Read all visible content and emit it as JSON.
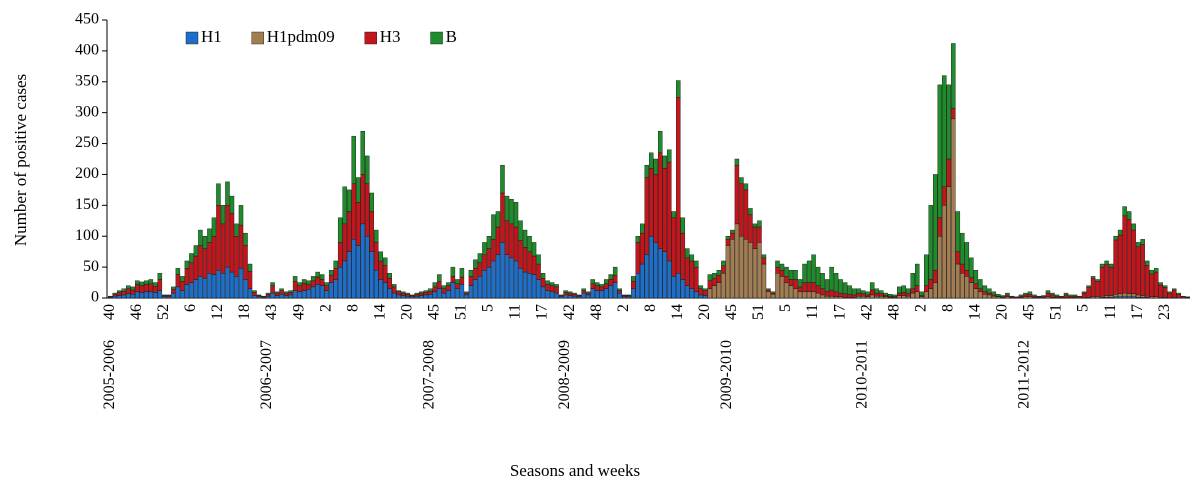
{
  "chart_data": {
    "type": "bar",
    "stacked": true,
    "ylabel": "Number of positive cases",
    "xlabel": "Seasons and weeks",
    "ylim": [
      0,
      450
    ],
    "yticks": [
      0,
      50,
      100,
      150,
      200,
      250,
      300,
      350,
      400,
      450
    ],
    "grid": false,
    "legend": "top-left",
    "seasons": [
      {
        "name": "2005-2006",
        "weeks": [
          "40",
          null,
          null,
          null,
          null,
          null,
          "46",
          null,
          null,
          null,
          null,
          null,
          "52",
          null,
          null,
          null,
          null,
          null,
          "6",
          null,
          null,
          null,
          null,
          null,
          "12",
          null,
          null,
          null,
          null,
          null,
          "18",
          null,
          null
        ]
      },
      {
        "name": "2006-2007",
        "weeks": [
          null,
          null,
          null,
          "43",
          null,
          null,
          null,
          null,
          null,
          "49",
          null,
          null,
          null,
          null,
          null,
          "2",
          null,
          null,
          null,
          null,
          null,
          "8",
          null,
          null,
          null,
          null,
          null,
          "14",
          null,
          null,
          null,
          null,
          null,
          "20"
        ]
      },
      {
        "name": "2007-2008",
        "weeks": [
          null,
          null,
          null,
          null,
          null,
          "45",
          null,
          null,
          null,
          null,
          null,
          "51",
          null,
          null,
          null,
          null,
          null,
          "5",
          null,
          null,
          null,
          null,
          null,
          "11",
          null,
          null,
          null,
          null,
          null,
          "17",
          null,
          null,
          null
        ]
      },
      {
        "name": "2008-2009",
        "weeks": [
          null,
          null,
          "42",
          null,
          null,
          null,
          null,
          null,
          "48",
          null,
          null,
          null,
          null,
          null,
          "2",
          null,
          null,
          null,
          null,
          null,
          "8",
          null,
          null,
          null,
          null,
          null,
          "14",
          null,
          null,
          null,
          null,
          null,
          "20"
        ]
      },
      {
        "name": "2009-2010",
        "weeks": [
          null,
          null,
          null,
          null,
          null,
          "45",
          null,
          null,
          null,
          null,
          null,
          "51",
          null,
          null,
          null,
          null,
          null,
          "5",
          null,
          null,
          null,
          null,
          null,
          "11",
          null,
          null,
          null,
          null,
          null,
          "17",
          null,
          null,
          null
        ]
      },
      {
        "name": "2010-2011",
        "weeks": [
          null,
          null,
          "42",
          null,
          null,
          null,
          null,
          null,
          "48",
          null,
          null,
          null,
          null,
          null,
          "2",
          null,
          null,
          null,
          null,
          null,
          "8",
          null,
          null,
          null,
          null,
          null,
          "14",
          null,
          null,
          null,
          null,
          null,
          "20"
        ]
      },
      {
        "name": "2011-2012",
        "weeks": [
          null,
          null,
          null,
          null,
          null,
          "45",
          null,
          null,
          null,
          null,
          null,
          "51",
          null,
          null,
          null,
          null,
          null,
          "5",
          null,
          null,
          null,
          null,
          null,
          "11",
          null,
          null,
          null,
          null,
          null,
          "17",
          null,
          null,
          null,
          null,
          null,
          "23",
          null,
          null,
          null,
          null,
          null
        ]
      }
    ],
    "series": [
      {
        "name": "H1",
        "color": "#1f6fc8",
        "values": [
          1,
          3,
          4,
          5,
          7,
          6,
          10,
          9,
          10,
          10,
          9,
          12,
          2,
          2,
          8,
          18,
          12,
          22,
          25,
          30,
          35,
          32,
          40,
          38,
          45,
          40,
          50,
          42,
          35,
          48,
          30,
          15,
          4,
          2,
          1,
          3,
          8,
          4,
          6,
          4,
          5,
          12,
          10,
          12,
          14,
          18,
          22,
          20,
          12,
          25,
          30,
          50,
          60,
          75,
          95,
          85,
          120,
          100,
          75,
          45,
          30,
          25,
          15,
          8,
          5,
          4,
          3,
          2,
          3,
          4,
          5,
          6,
          10,
          15,
          8,
          12,
          25,
          15,
          22,
          5,
          20,
          30,
          35,
          45,
          50,
          60,
          70,
          90,
          70,
          65,
          60,
          48,
          42,
          40,
          38,
          30,
          18,
          12,
          10,
          8,
          2,
          5,
          4,
          3,
          2,
          8,
          5,
          15,
          12,
          12,
          15,
          20,
          25,
          8,
          2,
          2,
          15,
          40,
          55,
          70,
          100,
          90,
          80,
          75,
          60,
          35,
          40,
          30,
          20,
          15,
          10,
          5,
          4,
          0,
          0,
          0,
          0,
          0,
          0,
          0,
          0,
          0,
          0,
          0,
          0,
          0,
          0,
          0,
          0,
          0,
          0,
          0,
          0,
          0,
          0,
          0,
          0,
          0,
          0,
          0,
          0,
          0,
          0,
          0,
          0,
          0,
          0,
          0,
          0,
          0,
          0,
          0,
          0,
          0,
          0,
          0,
          0,
          0,
          0,
          0,
          0,
          0,
          0,
          0,
          0,
          0,
          0,
          0,
          0,
          0,
          0,
          0,
          0,
          0,
          0,
          0,
          0,
          0,
          0,
          0,
          0,
          0,
          0,
          0,
          0,
          0,
          0,
          0,
          0,
          0,
          0,
          0,
          0,
          0,
          0,
          0,
          0,
          0,
          0,
          0,
          1,
          1,
          1,
          2,
          2,
          2,
          2,
          2,
          1,
          1,
          1,
          0,
          0,
          0,
          0,
          0,
          0,
          0,
          0,
          0
        ]
      },
      {
        "name": "H1pdm09",
        "color": "#a27d52",
        "values": [
          0,
          0,
          0,
          0,
          0,
          0,
          0,
          0,
          0,
          0,
          0,
          0,
          0,
          0,
          0,
          0,
          0,
          0,
          0,
          0,
          0,
          0,
          0,
          0,
          0,
          0,
          0,
          0,
          0,
          0,
          0,
          0,
          0,
          0,
          0,
          0,
          0,
          0,
          0,
          0,
          0,
          0,
          0,
          0,
          0,
          0,
          0,
          0,
          0,
          0,
          0,
          0,
          0,
          0,
          0,
          0,
          0,
          0,
          0,
          0,
          0,
          0,
          0,
          0,
          0,
          0,
          0,
          0,
          0,
          0,
          0,
          0,
          0,
          0,
          0,
          0,
          0,
          0,
          0,
          0,
          0,
          0,
          0,
          0,
          0,
          0,
          0,
          0,
          0,
          0,
          0,
          0,
          0,
          0,
          0,
          0,
          0,
          0,
          0,
          0,
          0,
          0,
          0,
          0,
          0,
          0,
          0,
          0,
          0,
          0,
          0,
          0,
          0,
          0,
          0,
          0,
          0,
          0,
          0,
          0,
          0,
          0,
          0,
          0,
          0,
          0,
          0,
          0,
          0,
          0,
          0,
          0,
          0,
          15,
          20,
          25,
          40,
          85,
          95,
          120,
          100,
          95,
          90,
          80,
          90,
          55,
          10,
          6,
          40,
          35,
          25,
          20,
          15,
          10,
          10,
          10,
          10,
          8,
          5,
          3,
          3,
          2,
          2,
          1,
          1,
          1,
          3,
          3,
          2,
          5,
          3,
          3,
          2,
          1,
          1,
          4,
          4,
          3,
          8,
          10,
          2,
          10,
          15,
          25,
          100,
          150,
          180,
          290,
          55,
          40,
          35,
          25,
          15,
          10,
          6,
          5,
          3,
          2,
          1,
          2,
          1,
          1,
          1,
          2,
          2,
          1,
          1,
          1,
          2,
          1,
          1,
          1,
          1,
          1,
          1,
          0,
          1,
          1,
          2,
          2,
          2,
          3,
          3,
          4,
          5,
          6,
          5,
          5,
          4,
          3,
          2,
          2,
          2,
          1,
          1,
          0,
          1,
          0,
          0,
          0
        ]
      },
      {
        "name": "H3",
        "color": "#c3161c",
        "values": [
          1,
          3,
          5,
          6,
          8,
          7,
          12,
          11,
          12,
          13,
          10,
          18,
          2,
          2,
          6,
          20,
          15,
          26,
          32,
          38,
          50,
          48,
          50,
          62,
          105,
          80,
          100,
          95,
          65,
          70,
          55,
          28,
          5,
          2,
          1,
          3,
          12,
          4,
          6,
          4,
          4,
          15,
          10,
          12,
          8,
          10,
          12,
          10,
          8,
          12,
          18,
          40,
          60,
          65,
          90,
          70,
          80,
          85,
          65,
          45,
          30,
          28,
          17,
          10,
          5,
          4,
          3,
          2,
          3,
          4,
          4,
          5,
          8,
          12,
          7,
          8,
          10,
          8,
          12,
          3,
          15,
          18,
          22,
          25,
          30,
          35,
          45,
          80,
          55,
          55,
          55,
          45,
          40,
          35,
          30,
          25,
          14,
          10,
          10,
          10,
          2,
          4,
          4,
          3,
          2,
          4,
          3,
          8,
          8,
          6,
          8,
          10,
          12,
          4,
          2,
          2,
          12,
          50,
          50,
          125,
          110,
          110,
          155,
          135,
          160,
          95,
          285,
          75,
          45,
          45,
          40,
          10,
          8,
          13,
          12,
          12,
          12,
          10,
          10,
          95,
          85,
          80,
          45,
          35,
          25,
          10,
          3,
          2,
          10,
          10,
          10,
          10,
          15,
          8,
          15,
          15,
          15,
          12,
          10,
          8,
          10,
          8,
          6,
          6,
          5,
          4,
          5,
          4,
          3,
          8,
          5,
          4,
          2,
          2,
          1,
          4,
          5,
          4,
          7,
          10,
          2,
          10,
          15,
          20,
          30,
          30,
          45,
          17,
          20,
          15,
          10,
          8,
          8,
          5,
          4,
          3,
          2,
          1,
          1,
          3,
          1,
          1,
          2,
          3,
          4,
          2,
          1,
          2,
          6,
          4,
          2,
          1,
          4,
          2,
          2,
          2,
          7,
          16,
          30,
          25,
          47,
          50,
          46,
          88,
          95,
          125,
          120,
          103,
          78,
          83,
          50,
          37,
          40,
          20,
          16,
          8,
          12,
          6,
          2,
          1
        ]
      },
      {
        "name": "B",
        "color": "#1f8b2b",
        "values": [
          1,
          2,
          3,
          4,
          5,
          5,
          6,
          6,
          6,
          7,
          6,
          10,
          1,
          1,
          4,
          10,
          8,
          12,
          15,
          17,
          25,
          20,
          22,
          30,
          35,
          30,
          38,
          28,
          20,
          32,
          20,
          12,
          3,
          1,
          1,
          2,
          5,
          2,
          3,
          2,
          3,
          8,
          5,
          6,
          6,
          7,
          8,
          8,
          5,
          8,
          12,
          40,
          60,
          35,
          77,
          40,
          70,
          45,
          30,
          20,
          15,
          12,
          8,
          4,
          2,
          2,
          2,
          1,
          2,
          2,
          3,
          4,
          7,
          11,
          5,
          5,
          15,
          7,
          14,
          2,
          10,
          14,
          15,
          20,
          20,
          40,
          25,
          45,
          40,
          40,
          40,
          32,
          28,
          25,
          22,
          15,
          8,
          6,
          5,
          4,
          1,
          3,
          2,
          2,
          1,
          3,
          2,
          7,
          5,
          4,
          7,
          8,
          13,
          3,
          1,
          1,
          8,
          10,
          15,
          20,
          25,
          25,
          35,
          20,
          20,
          10,
          27,
          25,
          15,
          10,
          10,
          5,
          3,
          10,
          8,
          8,
          8,
          5,
          5,
          10,
          10,
          10,
          10,
          5,
          10,
          5,
          2,
          2,
          10,
          10,
          15,
          15,
          15,
          12,
          30,
          35,
          45,
          30,
          25,
          19,
          37,
          30,
          22,
          18,
          14,
          10,
          7,
          5,
          5,
          12,
          7,
          5,
          4,
          3,
          3,
          10,
          11,
          8,
          25,
          35,
          6,
          50,
          120,
          155,
          215,
          180,
          120,
          105,
          65,
          50,
          45,
          32,
          22,
          15,
          10,
          7,
          5,
          3,
          2,
          3,
          1,
          0,
          2,
          3,
          4,
          2,
          1,
          1,
          4,
          3,
          2,
          1,
          3,
          2,
          2,
          1,
          2,
          3,
          3,
          3,
          5,
          6,
          5,
          6,
          8,
          15,
          13,
          10,
          7,
          8,
          7,
          6,
          6,
          4,
          3,
          2,
          2,
          2,
          1,
          1
        ]
      }
    ]
  }
}
